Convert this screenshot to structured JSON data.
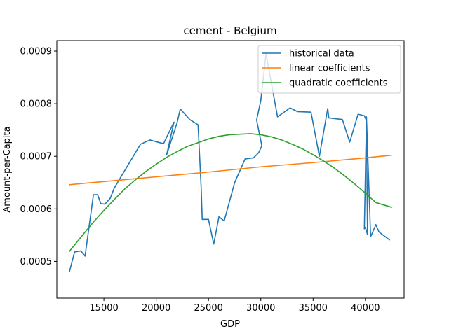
{
  "chart_data": {
    "type": "line",
    "title": "cement - Belgium",
    "xlabel": "GDP",
    "ylabel": "Amount-per-Capita",
    "xlim": [
      10500,
      43700
    ],
    "ylim": [
      0.00043,
      0.00092
    ],
    "xticks": [
      15000,
      20000,
      25000,
      30000,
      35000,
      40000
    ],
    "xtick_labels": [
      "15000",
      "20000",
      "25000",
      "30000",
      "35000",
      "40000"
    ],
    "yticks": [
      0.0005,
      0.0006,
      0.0007,
      0.0008,
      0.0009
    ],
    "ytick_labels": [
      "0.0005",
      "0.0006",
      "0.0007",
      "0.0008",
      "0.0009"
    ],
    "legend_position": "top-right",
    "series": [
      {
        "name": "historical data",
        "color": "#1f77b4",
        "x": [
          11700,
          12200,
          12800,
          13200,
          14000,
          14400,
          14700,
          15100,
          15600,
          16000,
          18500,
          19400,
          20700,
          21700,
          21000,
          22000,
          22300,
          22800,
          23200,
          24000,
          24200,
          24300,
          24400,
          25000,
          25500,
          26000,
          26500,
          27500,
          28500,
          29300,
          29800,
          30100,
          29600,
          30000,
          30500,
          31600,
          32800,
          33500,
          34800,
          35600,
          36400,
          36500,
          37800,
          38500,
          39300,
          39900,
          40100,
          39900,
          40000,
          40200,
          40100,
          40500,
          41000,
          41300,
          42300
        ],
        "y": [
          0.00048,
          0.000518,
          0.00052,
          0.00051,
          0.000627,
          0.000627,
          0.00061,
          0.000609,
          0.00062,
          0.00064,
          0.000723,
          0.000731,
          0.000724,
          0.000765,
          0.000703,
          0.000764,
          0.00079,
          0.000779,
          0.00077,
          0.00076,
          0.000681,
          0.00064,
          0.00058,
          0.00058,
          0.000533,
          0.000585,
          0.000577,
          0.00065,
          0.000695,
          0.000697,
          0.000707,
          0.00072,
          0.000769,
          0.000806,
          0.000895,
          0.000775,
          0.000792,
          0.000785,
          0.000784,
          0.0007,
          0.000791,
          0.000773,
          0.00077,
          0.000727,
          0.00078,
          0.000777,
          0.000768,
          0.000562,
          0.000565,
          0.000551,
          0.000775,
          0.000547,
          0.00057,
          0.000556,
          0.000541
        ]
      },
      {
        "name": "linear coefficients",
        "color": "#ff7f0e",
        "x": [
          11700,
          15000,
          20000,
          25000,
          30000,
          35000,
          40000,
          42500
        ],
        "y": [
          0.000646,
          0.000652,
          0.000661,
          0.00067,
          0.00068,
          0.000688,
          0.000697,
          0.000702
        ]
      },
      {
        "name": "quadratic coefficients",
        "color": "#2ca02c",
        "x": [
          11700,
          13000,
          14000,
          15000,
          16000,
          17000,
          18000,
          19000,
          20000,
          21000,
          22000,
          23000,
          24000,
          25000,
          26000,
          27000,
          28000,
          29000,
          30000,
          31000,
          32000,
          33000,
          34000,
          35000,
          36000,
          37000,
          38000,
          39000,
          40000,
          41000,
          42500
        ],
        "y": [
          0.000519,
          0.000551,
          0.000575,
          0.000597,
          0.000618,
          0.000638,
          0.000655,
          0.000671,
          0.000685,
          0.000698,
          0.000709,
          0.000719,
          0.000726,
          0.000733,
          0.000738,
          0.000741,
          0.000742,
          0.000743,
          0.000741,
          0.000737,
          0.000731,
          0.000723,
          0.000714,
          0.000703,
          0.000691,
          0.000678,
          0.000663,
          0.000647,
          0.00063,
          0.000612,
          0.000603
        ]
      }
    ]
  }
}
